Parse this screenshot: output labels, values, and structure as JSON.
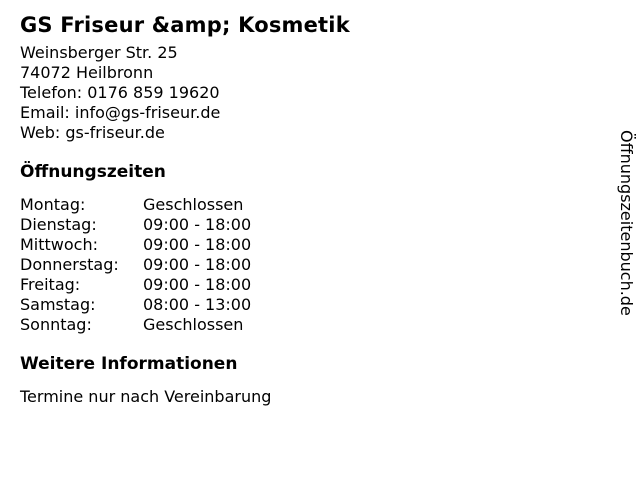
{
  "business": {
    "name": "GS Friseur &amp; Kosmetik",
    "address": [
      "Weinsberger Str. 25",
      "74072 Heilbronn"
    ],
    "contact": {
      "phone_label": "Telefon:",
      "phone_value": "0176 859 19620",
      "email_label": "Email:",
      "email_value": "info@gs-friseur.de",
      "web_label": "Web:",
      "web_value": "gs-friseur.de"
    }
  },
  "hours_section": {
    "heading": "Öffnungszeiten",
    "rows": [
      {
        "day": "Montag:",
        "time": "Geschlossen"
      },
      {
        "day": "Dienstag:",
        "time": "09:00 - 18:00"
      },
      {
        "day": "Mittwoch:",
        "time": "09:00 - 18:00"
      },
      {
        "day": "Donnerstag:",
        "time": "09:00 - 18:00"
      },
      {
        "day": "Freitag:",
        "time": "09:00 - 18:00"
      },
      {
        "day": "Samstag:",
        "time": "08:00 - 13:00"
      },
      {
        "day": "Sonntag:",
        "time": "Geschlossen"
      }
    ]
  },
  "info_section": {
    "heading": "Weitere Informationen",
    "text": "Termine nur nach Vereinbarung"
  },
  "watermark": {
    "text": "Öffnungszeitenbuch.de"
  },
  "colors": {
    "text": "#000000",
    "background": "#ffffff"
  }
}
